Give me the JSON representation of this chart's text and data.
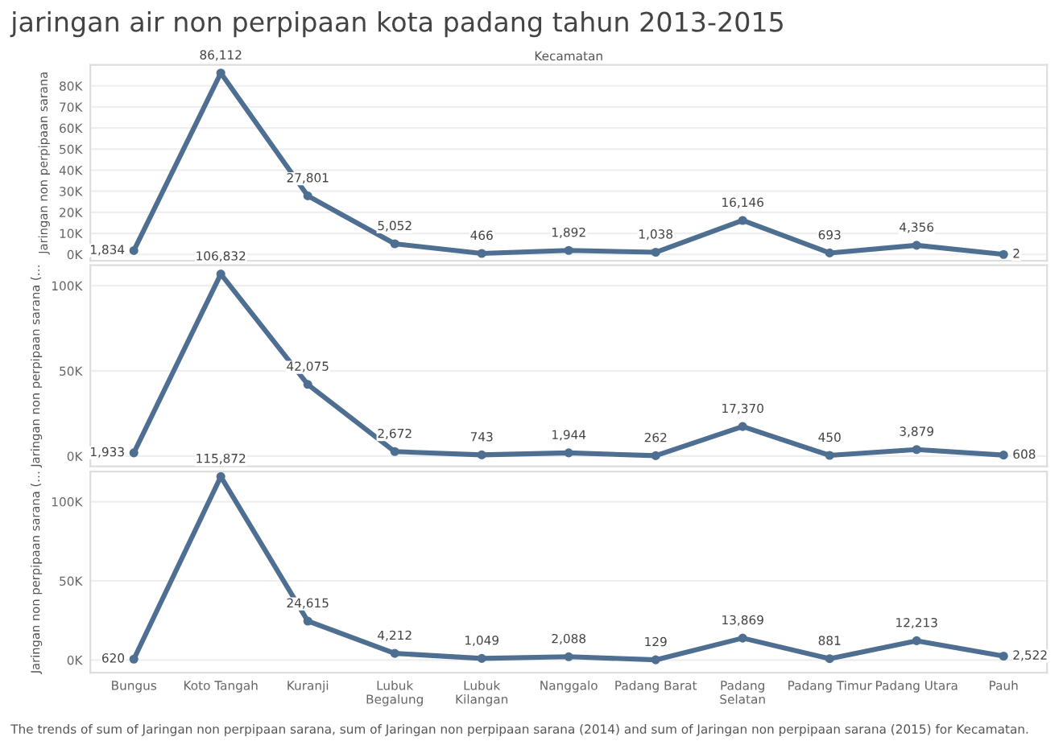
{
  "chart_data": [
    {
      "type": "line",
      "title": "jaringan air non perpipaan kota padang tahun 2013-2015",
      "xlabel": "Kecamatan",
      "ylabel": "Jaringan non perpipaan sarana",
      "categories": [
        null,
        null,
        null,
        null,
        null,
        null,
        null,
        null,
        null,
        null,
        null
      ],
      "series": [
        {
          "color": "#4e6f91",
          "values": [
            1834,
            86112,
            27801,
            5052,
            466,
            1892,
            1038,
            16146,
            693,
            4356,
            2
          ],
          "value_labels": [
            "1,834",
            "86,112",
            "27,801",
            "5,052",
            "466",
            "1,892",
            "1,038",
            "16,146",
            "693",
            "4,356",
            "2"
          ]
        }
      ],
      "ylim": [
        -3000,
        90000
      ],
      "yticks": [
        {
          "value": 0,
          "label": "0K"
        },
        {
          "value": 10000,
          "label": "10K"
        },
        {
          "value": 20000,
          "label": "20K"
        },
        {
          "value": 30000,
          "label": "30K"
        },
        {
          "value": 40000,
          "label": "40K"
        },
        {
          "value": 50000,
          "label": "50K"
        },
        {
          "value": 60000,
          "label": "60K"
        },
        {
          "value": 70000,
          "label": "70K"
        },
        {
          "value": 80000,
          "label": "80K"
        }
      ],
      "grid": "y",
      "marker": "circle",
      "tick_labels": "y"
    },
    {
      "type": "line",
      "ylabel": "Jaringan non perpipaan sarana (…",
      "categories": [
        null,
        null,
        null,
        null,
        null,
        null,
        null,
        null,
        null,
        null,
        null
      ],
      "series": [
        {
          "color": "#4e6f91",
          "values": [
            1933,
            106832,
            42075,
            2672,
            743,
            1944,
            262,
            17370,
            450,
            3879,
            608
          ],
          "value_labels": [
            "1,933",
            "106,832",
            "42,075",
            "2,672",
            "743",
            "1,944",
            "262",
            "17,370",
            "450",
            "3,879",
            "608"
          ]
        }
      ],
      "ylim": [
        -6000,
        112000
      ],
      "yticks": [
        {
          "value": 0,
          "label": "0K"
        },
        {
          "value": 50000,
          "label": "50K"
        },
        {
          "value": 100000,
          "label": "100K"
        }
      ],
      "grid": "y",
      "marker": "circle",
      "tick_labels": "y"
    },
    {
      "type": "line",
      "ylabel": "Jaringan non perpipaan sarana (…",
      "categories": [
        "Bungus",
        "Koto Tangah",
        "Kuranji",
        "Lubuk Begalung",
        "Lubuk Kilangan",
        "Nanggalo",
        "Padang Barat",
        "Padang Selatan",
        "Padang Timur",
        "Padang Utara",
        "Pauh"
      ],
      "series": [
        {
          "color": "#4e6f91",
          "values": [
            620,
            115872,
            24615,
            4212,
            1049,
            2088,
            129,
            13869,
            881,
            12213,
            2522
          ],
          "value_labels": [
            "620",
            "115,872",
            "24,615",
            "4,212",
            "1,049",
            "2,088",
            "129",
            "13,869",
            "881",
            "12,213",
            "2,522"
          ]
        }
      ],
      "ylim": [
        -8000,
        119000
      ],
      "yticks": [
        {
          "value": 0,
          "label": "0K"
        },
        {
          "value": 50000,
          "label": "50K"
        },
        {
          "value": 100000,
          "label": "100K"
        }
      ],
      "grid": "y",
      "marker": "circle",
      "annotations": [
        "The trends of sum of Jaringan non perpipaan sarana, sum of Jaringan non perpipaan sarana (2014) and sum of Jaringan non perpipaan sarana (2015) for Kecamatan."
      ]
    }
  ]
}
